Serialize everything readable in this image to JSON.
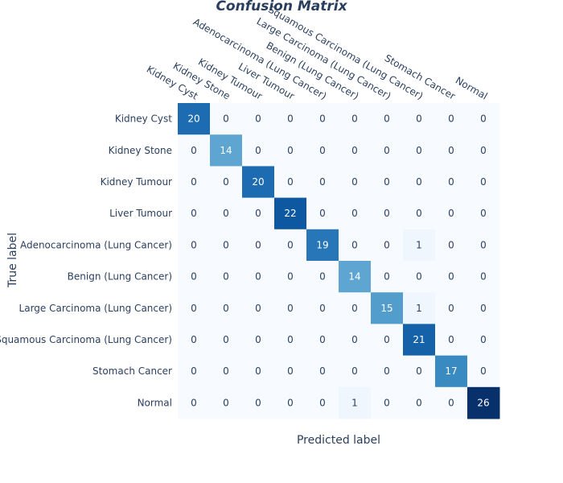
{
  "chart_data": {
    "type": "heatmap",
    "title": "Confusion Matrix",
    "xlabel": "Predicted label",
    "ylabel": "True label",
    "x_categories": [
      "Kidney Cyst",
      "Kidney Stone",
      "Kidney Tumour",
      "Liver Tumour",
      "Adenocarcinoma (Lung Cancer)",
      "Benign (Lung Cancer)",
      "Large Carcinoma (Lung Cancer)",
      "Squamous Carcinoma (Lung Cancer)",
      "Stomach Cancer",
      "Normal"
    ],
    "y_categories": [
      "Kidney Cyst",
      "Kidney Stone",
      "Kidney Tumour",
      "Liver Tumour",
      "Adenocarcinoma (Lung Cancer)",
      "Benign (Lung Cancer)",
      "Large Carcinoma (Lung Cancer)",
      "Squamous Carcinoma (Lung Cancer)",
      "Stomach Cancer",
      "Normal"
    ],
    "values": [
      [
        20,
        0,
        0,
        0,
        0,
        0,
        0,
        0,
        0,
        0
      ],
      [
        0,
        14,
        0,
        0,
        0,
        0,
        0,
        0,
        0,
        0
      ],
      [
        0,
        0,
        20,
        0,
        0,
        0,
        0,
        0,
        0,
        0
      ],
      [
        0,
        0,
        0,
        22,
        0,
        0,
        0,
        0,
        0,
        0
      ],
      [
        0,
        0,
        0,
        0,
        19,
        0,
        0,
        1,
        0,
        0
      ],
      [
        0,
        0,
        0,
        0,
        0,
        14,
        0,
        0,
        0,
        0
      ],
      [
        0,
        0,
        0,
        0,
        0,
        0,
        15,
        1,
        0,
        0
      ],
      [
        0,
        0,
        0,
        0,
        0,
        0,
        0,
        21,
        0,
        0
      ],
      [
        0,
        0,
        0,
        0,
        0,
        0,
        0,
        0,
        17,
        0
      ],
      [
        0,
        0,
        0,
        0,
        0,
        1,
        0,
        0,
        0,
        26
      ]
    ],
    "colorscale": "Blues",
    "zlim": [
      0,
      26
    ],
    "grid": false
  }
}
